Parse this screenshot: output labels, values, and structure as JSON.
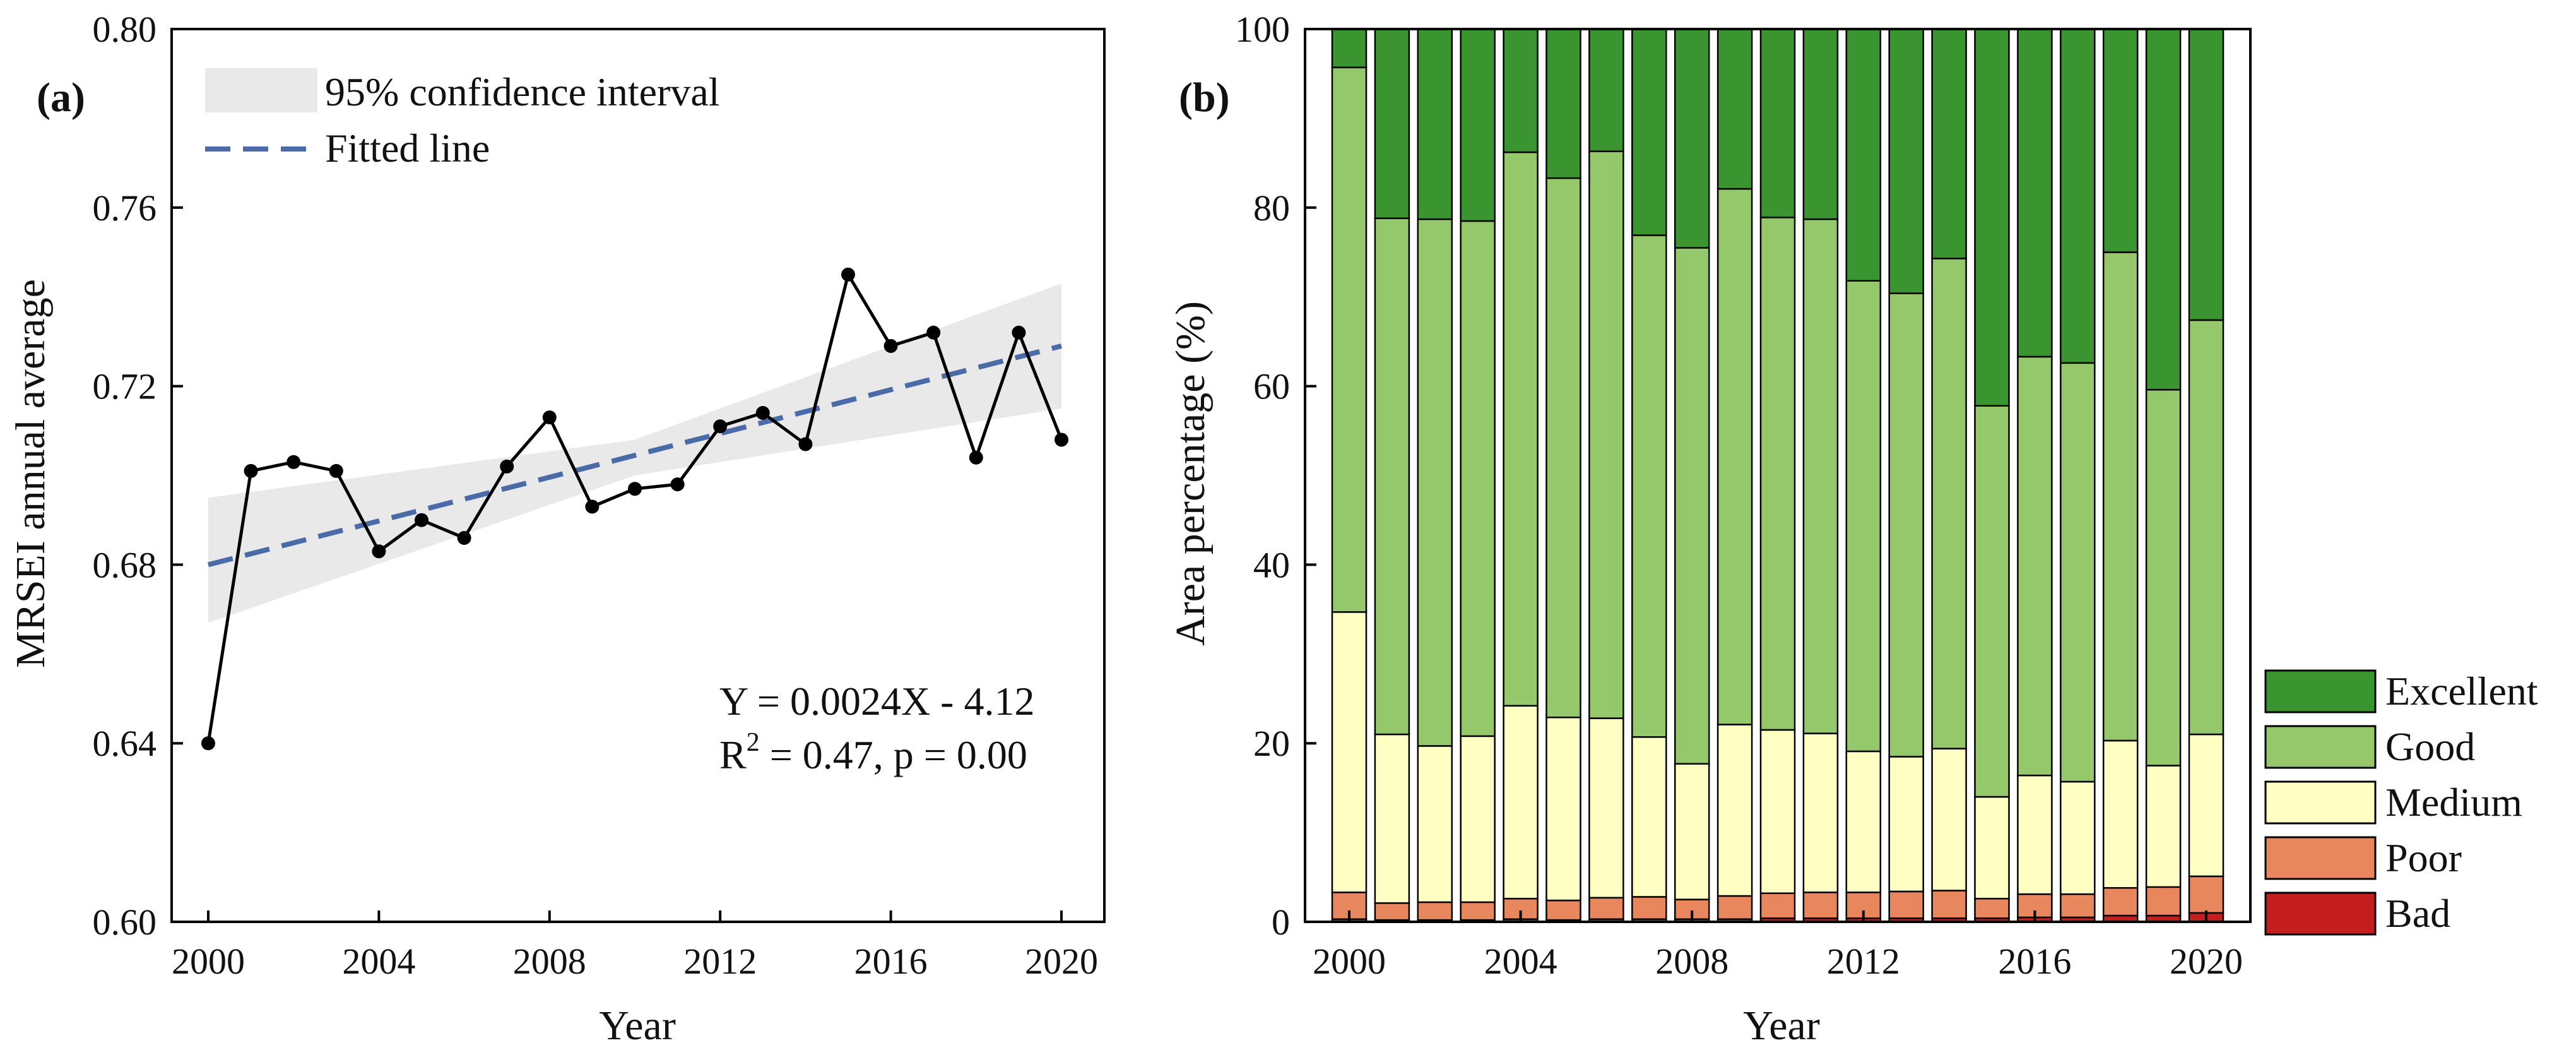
{
  "colors": {
    "line": "#000000",
    "fitted": "#4a6aa8",
    "ci": "#e9e9e9",
    "excellent": "#3a9430",
    "good": "#94c86a",
    "medium": "#ffffc4",
    "poor": "#e8875e",
    "bad": "#c41e1e"
  },
  "chart_data": [
    {
      "type": "line",
      "panel_label": "(a)",
      "xlabel": "Year",
      "ylabel": "MRSEI annual average",
      "xlim": [
        2000,
        2020
      ],
      "ylim": [
        0.6,
        0.8
      ],
      "xticks": [
        "2000",
        "2004",
        "2008",
        "2012",
        "2016",
        "2020"
      ],
      "yticks": [
        "0.60",
        "0.64",
        "0.68",
        "0.72",
        "0.76",
        "0.80"
      ],
      "x": [
        2000,
        2001,
        2002,
        2003,
        2004,
        2005,
        2006,
        2007,
        2008,
        2009,
        2010,
        2011,
        2012,
        2013,
        2014,
        2015,
        2016,
        2017,
        2018,
        2019,
        2020
      ],
      "y": [
        0.64,
        0.701,
        0.703,
        0.701,
        0.683,
        0.69,
        0.686,
        0.702,
        0.713,
        0.693,
        0.697,
        0.698,
        0.711,
        0.714,
        0.707,
        0.745,
        0.729,
        0.732,
        0.704,
        0.732,
        0.708
      ],
      "fitted": {
        "x": [
          2000,
          2020
        ],
        "y": [
          0.68,
          0.729
        ]
      },
      "ci": {
        "x": [
          2000,
          2010,
          2020
        ],
        "lower": [
          0.667,
          0.7,
          0.715
        ],
        "upper": [
          0.695,
          0.708,
          0.743
        ]
      },
      "legend": {
        "ci": "95% confidence interval",
        "fitted": "Fitted line"
      },
      "equation": "Y = 0.0024X - 4.12",
      "r2_prefix": "R",
      "r2_sup": "2",
      "r2_suffix": " = 0.47, p = 0.00"
    },
    {
      "type": "stacked_bar",
      "panel_label": "(b)",
      "xlabel": "Year",
      "ylabel": "Area percentage (%)",
      "ylim": [
        0,
        100
      ],
      "xticks": [
        "2000",
        "2004",
        "2008",
        "2012",
        "2016",
        "2020"
      ],
      "yticks": [
        "0",
        "20",
        "40",
        "60",
        "80",
        "100"
      ],
      "categories": [
        2000,
        2001,
        2002,
        2003,
        2004,
        2005,
        2006,
        2007,
        2008,
        2009,
        2010,
        2011,
        2012,
        2013,
        2014,
        2015,
        2016,
        2017,
        2018,
        2019,
        2020
      ],
      "series": [
        {
          "name": "Bad",
          "values": [
            0.3,
            0.2,
            0.2,
            0.2,
            0.3,
            0.2,
            0.3,
            0.3,
            0.3,
            0.3,
            0.4,
            0.4,
            0.4,
            0.4,
            0.4,
            0.4,
            0.5,
            0.5,
            0.7,
            0.7,
            1.0
          ]
        },
        {
          "name": "Poor",
          "values": [
            3.0,
            1.9,
            2.0,
            2.0,
            2.3,
            2.2,
            2.4,
            2.5,
            2.2,
            2.6,
            2.8,
            2.9,
            2.9,
            3.0,
            3.1,
            2.2,
            2.6,
            2.6,
            3.1,
            3.2,
            4.1
          ]
        },
        {
          "name": "Medium",
          "values": [
            31.4,
            18.9,
            17.5,
            18.6,
            21.6,
            20.5,
            20.1,
            17.9,
            15.2,
            19.2,
            18.3,
            17.8,
            15.8,
            15.1,
            15.9,
            11.4,
            13.3,
            12.6,
            16.5,
            13.6,
            15.9
          ]
        },
        {
          "name": "Good",
          "values": [
            61.0,
            57.8,
            59.0,
            57.7,
            62.0,
            60.4,
            63.5,
            56.2,
            57.8,
            60.0,
            57.4,
            57.6,
            52.7,
            51.9,
            54.9,
            43.8,
            46.9,
            46.9,
            54.7,
            42.1,
            46.4
          ]
        },
        {
          "name": "Excellent",
          "values": [
            4.3,
            21.2,
            21.3,
            21.5,
            13.8,
            16.7,
            13.7,
            23.1,
            24.5,
            17.9,
            21.1,
            21.3,
            28.2,
            29.6,
            25.7,
            42.2,
            36.7,
            37.4,
            25.0,
            40.4,
            32.6
          ]
        }
      ],
      "legend": [
        "Excellent",
        "Good",
        "Medium",
        "Poor",
        "Bad"
      ]
    }
  ]
}
